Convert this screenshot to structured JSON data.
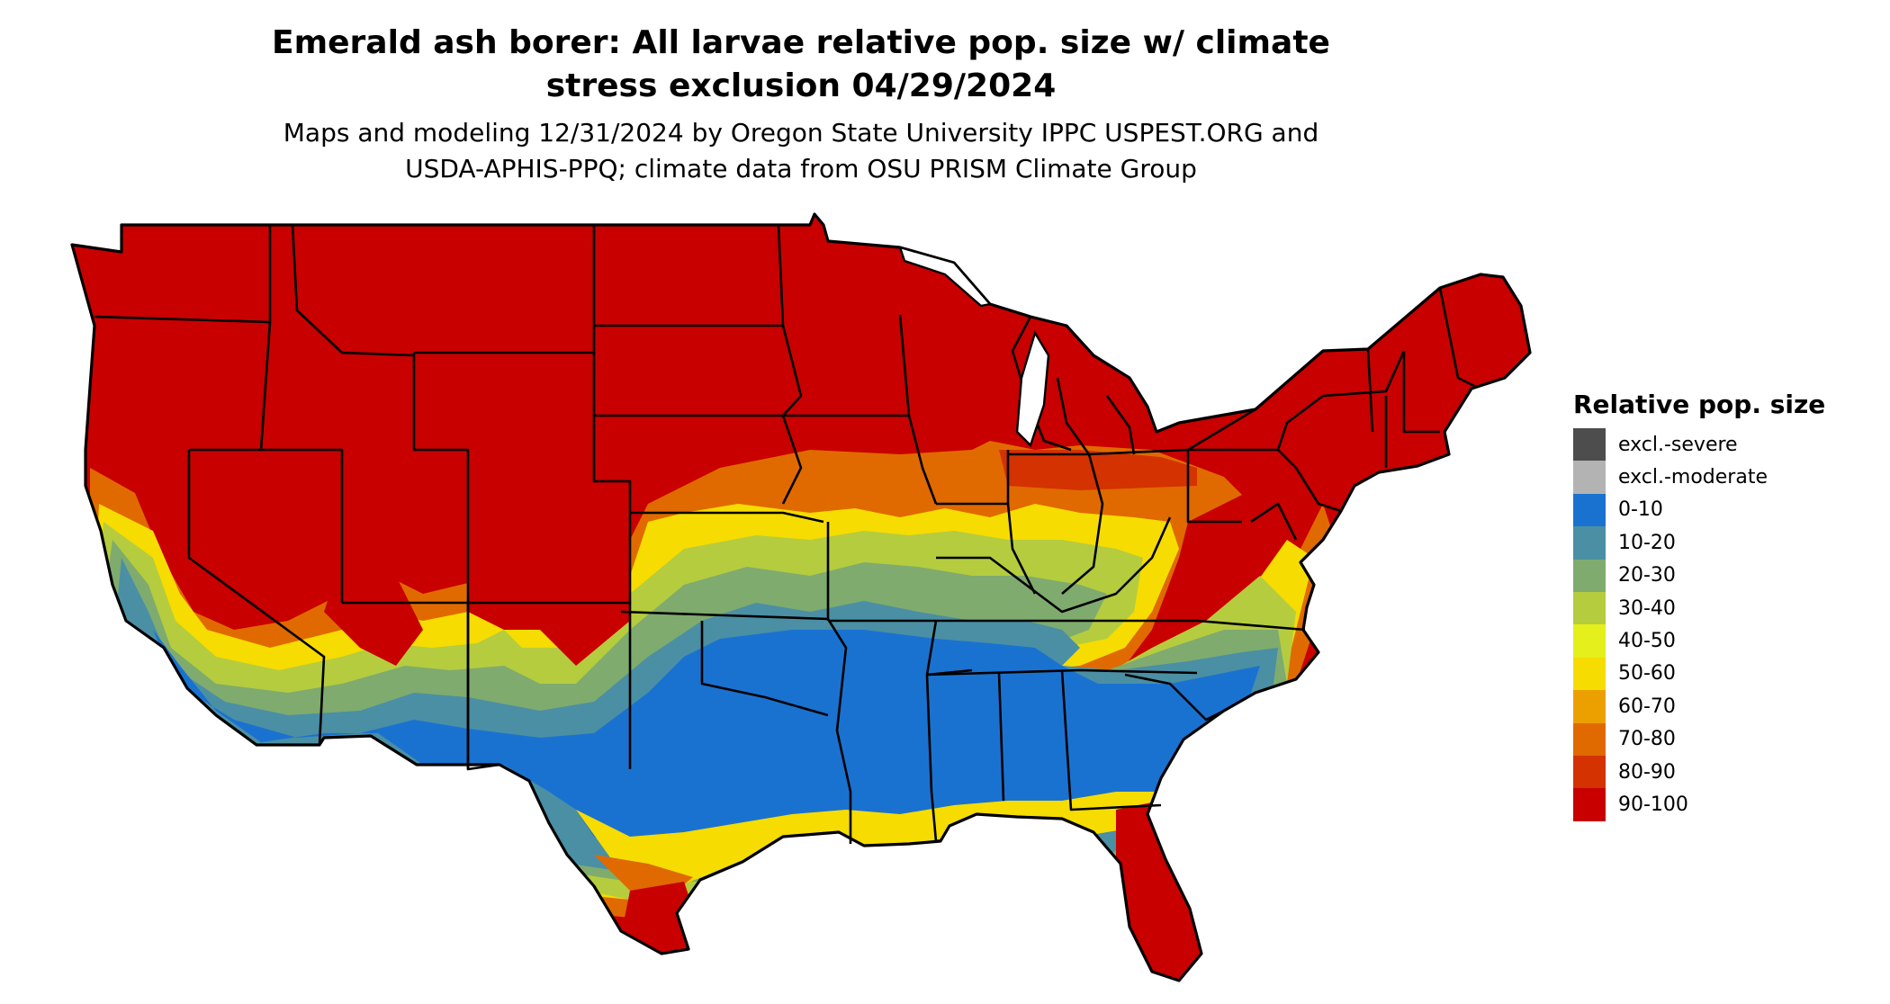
{
  "title": {
    "line1": "Emerald ash borer: All larvae relative pop. size w/ climate",
    "line2": "stress exclusion 04/29/2024"
  },
  "subtitle": {
    "line1": "Maps and modeling 12/31/2024 by Oregon State University IPPC USPEST.ORG and",
    "line2": "USDA-APHIS-PPQ; climate data from OSU PRISM Climate Group"
  },
  "legend": {
    "title": "Relative pop. size",
    "items": [
      {
        "label": "excl.-severe",
        "color": "#4d4d4d"
      },
      {
        "label": "excl.-moderate",
        "color": "#b3b3b3"
      },
      {
        "label": "0-10",
        "color": "#1a72d0"
      },
      {
        "label": "10-20",
        "color": "#4a8fa4"
      },
      {
        "label": "20-30",
        "color": "#7fab6e"
      },
      {
        "label": "30-40",
        "color": "#b5cc3f"
      },
      {
        "label": "40-50",
        "color": "#e4ef1c"
      },
      {
        "label": "50-60",
        "color": "#f6dc00"
      },
      {
        "label": "60-70",
        "color": "#eca000"
      },
      {
        "label": "70-80",
        "color": "#e06a00"
      },
      {
        "label": "80-90",
        "color": "#d43200"
      },
      {
        "label": "90-100",
        "color": "#c80000"
      }
    ]
  },
  "map": {
    "region": "Contiguous United States",
    "state_borders": true
  }
}
